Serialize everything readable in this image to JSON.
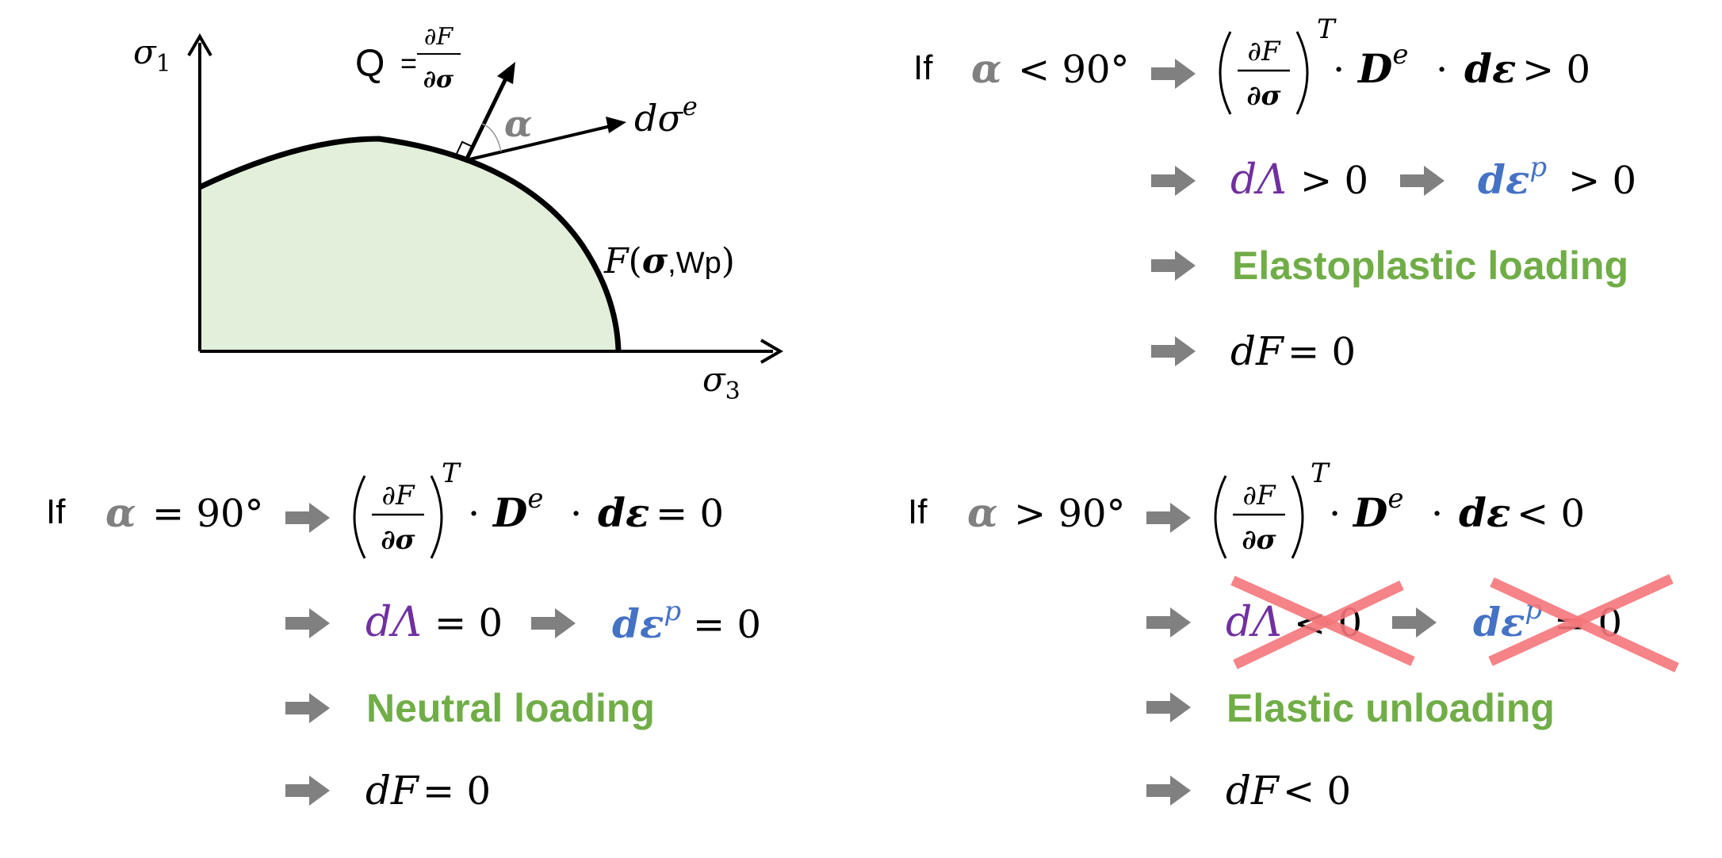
{
  "colors": {
    "fill": "#e2efda",
    "black": "#000000",
    "gray": "#808080",
    "purple": "#7030a0",
    "blue": "#4472c4",
    "green": "#70ad47",
    "cross": "#f4757a"
  },
  "diagram": {
    "y_axis_symbol": "σ",
    "y_axis_sub": "1",
    "x_axis_symbol": "σ",
    "x_axis_sub": "3",
    "q_label": "Q",
    "q_eq": "=",
    "q_num": "∂F",
    "q_den": "∂σ",
    "alpha": "α",
    "dsig": "dσ",
    "dsig_sup": "e",
    "f_F": "F",
    "f_open": "(",
    "f_sigma": "σ",
    "f_wp": ",Wp",
    "f_close": ")"
  },
  "tr": {
    "if": "If",
    "alpha": "α",
    "cond": "< 90°",
    "deriv_num": "∂F",
    "deriv_den": "∂σ",
    "T": "T",
    "dot1": "·",
    "D": "D",
    "D_sup": "e",
    "dot2": "·",
    "deps": "dε",
    "rel": "> 0",
    "dlam": "dΛ",
    "dlam_rel": "> 0",
    "depsp": "dε",
    "depsp_sup": "p",
    "depsp_rel": "> 0",
    "label": "Elastoplastic loading",
    "dF": "dF",
    "dF_rel": "= 0"
  },
  "bl": {
    "if": "If",
    "alpha": "α",
    "cond": "= 90°",
    "deriv_num": "∂F",
    "deriv_den": "∂σ",
    "T": "T",
    "dot1": "·",
    "D": "D",
    "D_sup": "e",
    "dot2": "·",
    "deps": "dε",
    "rel": "= 0",
    "dlam": "dΛ",
    "dlam_rel": "= 0",
    "depsp": "dε",
    "depsp_sup": "p",
    "depsp_rel": "= 0",
    "label": "Neutral loading",
    "dF": "dF",
    "dF_rel": "= 0"
  },
  "br": {
    "if": "If",
    "alpha": "α",
    "cond": "> 90°",
    "deriv_num": "∂F",
    "deriv_den": "∂σ",
    "T": "T",
    "dot1": "·",
    "D": "D",
    "D_sup": "e",
    "dot2": "·",
    "deps": "dε",
    "rel": "< 0",
    "dlam": "dΛ",
    "dlam_rel": "< 0",
    "depsp": "dε",
    "depsp_sup": "p",
    "depsp_rel": "= 0",
    "label": "Elastic unloading",
    "dF": "dF",
    "dF_rel": "< 0"
  }
}
